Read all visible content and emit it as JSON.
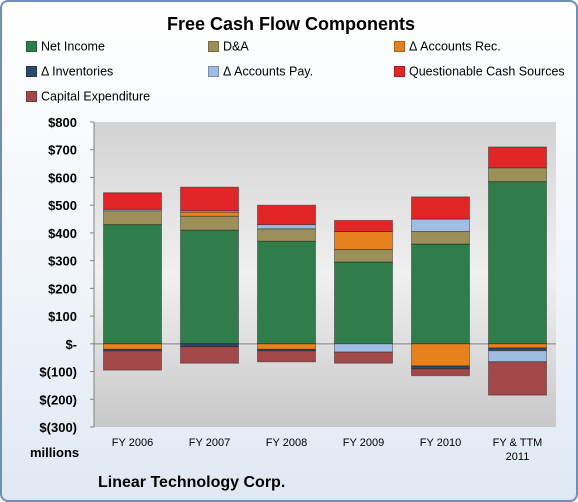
{
  "chart_data": {
    "type": "bar",
    "stacked": true,
    "title": "Free Cash Flow Components",
    "units_label": "millions",
    "footer": "Linear Technology Corp.",
    "categories": [
      "FY 2006",
      "FY 2007",
      "FY 2008",
      "FY 2009",
      "FY 2010",
      "FY & TTM 2011"
    ],
    "ylim": [
      -300,
      800
    ],
    "yticks": [
      800,
      700,
      600,
      500,
      400,
      300,
      200,
      100,
      0,
      -100,
      -200,
      -300
    ],
    "ytick_labels": [
      "$800",
      "$700",
      "$600",
      "$500",
      "$400",
      "$300",
      "$200",
      "$100",
      "$-",
      "$(100)",
      "$(200)",
      "$(300)"
    ],
    "legend_position": "top",
    "grid": false,
    "series": [
      {
        "name": "Net Income",
        "color": "#2e7d4a",
        "values": [
          430,
          410,
          370,
          295,
          360,
          585
        ]
      },
      {
        "name": "D&A",
        "color": "#9c8f5a",
        "values": [
          50,
          50,
          45,
          45,
          45,
          50
        ]
      },
      {
        "name": "Δ Accounts Rec.",
        "color": "#e6821e",
        "values": [
          -20,
          15,
          -20,
          65,
          -80,
          -15
        ]
      },
      {
        "name": "Δ Inventories",
        "color": "#2d4a6b",
        "values": [
          -5,
          -10,
          -5,
          0,
          -10,
          -10
        ]
      },
      {
        "name": "Δ Accounts Pay.",
        "color": "#9fbde3",
        "values": [
          5,
          5,
          15,
          -30,
          45,
          -40
        ]
      },
      {
        "name": "Questionable Cash Sources",
        "color": "#e02626",
        "values": [
          60,
          85,
          70,
          40,
          80,
          75
        ]
      },
      {
        "name": "Capital Expenditure",
        "color": "#a24848",
        "values": [
          -70,
          -60,
          -40,
          -40,
          -25,
          -120
        ]
      }
    ]
  }
}
